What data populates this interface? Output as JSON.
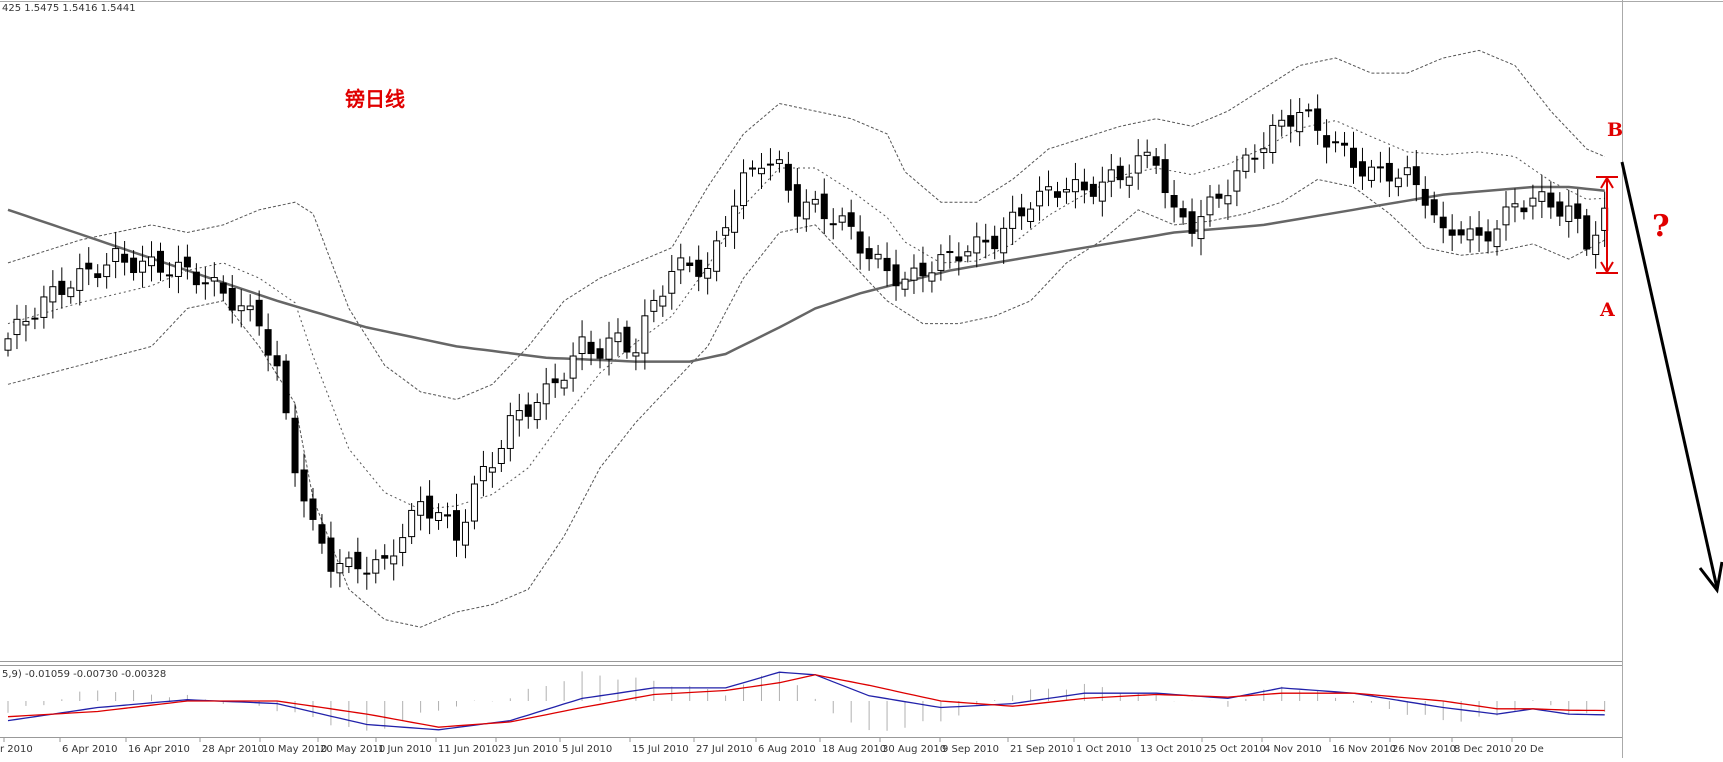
{
  "header": {
    "ohlc_readout": "425 1.5475 1.5416 1.5441"
  },
  "macd_header": {
    "readout": "5,9) -0.01059 -0.00730 -0.00328"
  },
  "annotations": {
    "title": "镑日线",
    "label_b": "B",
    "label_a": "A",
    "question": "?"
  },
  "colors": {
    "candle": "#000000",
    "bollinger": "#555555",
    "ma": "#666666",
    "macd_line": "#2222aa",
    "signal_line": "#dd0000",
    "histogram": "#b0b0b0",
    "annotation": "#e00000",
    "arrow": "#000000"
  },
  "chart_data": {
    "type": "candlestick",
    "xlabel": "",
    "ylabel": "",
    "x_ticks": [
      "r 2010",
      "6 Apr 2010",
      "16 Apr 2010",
      "28 Apr 2010",
      "10 May 2010",
      "20 May 2010",
      "1 Jun 2010",
      "11 Jun 2010",
      "23 Jun 2010",
      "5 Jul 2010",
      "15 Jul 2010",
      "27 Jul 2010",
      "6 Aug 2010",
      "18 Aug 2010",
      "30 Aug 2010",
      "9 Sep 2010",
      "21 Sep 2010",
      "1 Oct 2010",
      "13 Oct 2010",
      "25 Oct 2010",
      "4 Nov 2010",
      "16 Nov 2010",
      "26 Nov 2010",
      "8 Dec 2010",
      "20 De"
    ],
    "grid": false,
    "price_path": [
      [
        0,
        1.512
      ],
      [
        4,
        1.52
      ],
      [
        8,
        1.528
      ],
      [
        12,
        1.535
      ],
      [
        16,
        1.532
      ],
      [
        20,
        1.528
      ],
      [
        24,
        1.523
      ],
      [
        28,
        1.518
      ],
      [
        30,
        1.505
      ],
      [
        32,
        1.48
      ],
      [
        34,
        1.462
      ],
      [
        36,
        1.452
      ],
      [
        38,
        1.45
      ],
      [
        42,
        1.452
      ],
      [
        44,
        1.462
      ],
      [
        46,
        1.47
      ],
      [
        48,
        1.468
      ],
      [
        50,
        1.46
      ],
      [
        52,
        1.472
      ],
      [
        54,
        1.478
      ],
      [
        56,
        1.488
      ],
      [
        60,
        1.498
      ],
      [
        62,
        1.505
      ],
      [
        64,
        1.512
      ],
      [
        66,
        1.51
      ],
      [
        68,
        1.512
      ],
      [
        70,
        1.508
      ],
      [
        72,
        1.52
      ],
      [
        74,
        1.528
      ],
      [
        76,
        1.532
      ],
      [
        78,
        1.53
      ],
      [
        80,
        1.545
      ],
      [
        82,
        1.555
      ],
      [
        84,
        1.56
      ],
      [
        86,
        1.556
      ],
      [
        88,
        1.545
      ],
      [
        90,
        1.545
      ],
      [
        94,
        1.541
      ],
      [
        96,
        1.535
      ],
      [
        98,
        1.532
      ],
      [
        100,
        1.528
      ],
      [
        102,
        1.53
      ],
      [
        104,
        1.531
      ],
      [
        106,
        1.533
      ],
      [
        108,
        1.535
      ],
      [
        110,
        1.538
      ],
      [
        112,
        1.544
      ],
      [
        114,
        1.55
      ],
      [
        116,
        1.552
      ],
      [
        118,
        1.553
      ],
      [
        120,
        1.55
      ],
      [
        124,
        1.553
      ],
      [
        126,
        1.558
      ],
      [
        128,
        1.56
      ],
      [
        130,
        1.546
      ],
      [
        132,
        1.544
      ],
      [
        134,
        1.548
      ],
      [
        136,
        1.552
      ],
      [
        138,
        1.557
      ],
      [
        140,
        1.562
      ],
      [
        142,
        1.567
      ],
      [
        144,
        1.572
      ],
      [
        146,
        1.568
      ],
      [
        148,
        1.565
      ],
      [
        150,
        1.56
      ],
      [
        152,
        1.556
      ],
      [
        154,
        1.555
      ],
      [
        156,
        1.553
      ],
      [
        158,
        1.548
      ],
      [
        160,
        1.538
      ],
      [
        162,
        1.542
      ],
      [
        164,
        1.539
      ],
      [
        166,
        1.544
      ],
      [
        168,
        1.548
      ],
      [
        170,
        1.549
      ],
      [
        172,
        1.546
      ],
      [
        174,
        1.544
      ],
      [
        176,
        1.536
      ],
      [
        178,
        1.5441
      ]
    ],
    "ma_path": [
      [
        0,
        1.546
      ],
      [
        10,
        1.538
      ],
      [
        20,
        1.53
      ],
      [
        30,
        1.522
      ],
      [
        40,
        1.515
      ],
      [
        50,
        1.51
      ],
      [
        60,
        1.507
      ],
      [
        70,
        1.506
      ],
      [
        76,
        1.506
      ],
      [
        80,
        1.508
      ],
      [
        86,
        1.515
      ],
      [
        90,
        1.52
      ],
      [
        95,
        1.524
      ],
      [
        100,
        1.527
      ],
      [
        105,
        1.53
      ],
      [
        110,
        1.532
      ],
      [
        115,
        1.534
      ],
      [
        120,
        1.536
      ],
      [
        125,
        1.538
      ],
      [
        130,
        1.54
      ],
      [
        135,
        1.541
      ],
      [
        140,
        1.542
      ],
      [
        145,
        1.544
      ],
      [
        150,
        1.546
      ],
      [
        155,
        1.548
      ],
      [
        160,
        1.55
      ],
      [
        165,
        1.551
      ],
      [
        170,
        1.552
      ],
      [
        174,
        1.552
      ],
      [
        178,
        1.551
      ]
    ],
    "bb_upper_path": [
      [
        0,
        1.532
      ],
      [
        8,
        1.538
      ],
      [
        16,
        1.542
      ],
      [
        20,
        1.54
      ],
      [
        24,
        1.542
      ],
      [
        28,
        1.546
      ],
      [
        32,
        1.548
      ],
      [
        34,
        1.545
      ],
      [
        38,
        1.52
      ],
      [
        42,
        1.505
      ],
      [
        46,
        1.498
      ],
      [
        50,
        1.496
      ],
      [
        54,
        1.5
      ],
      [
        58,
        1.51
      ],
      [
        62,
        1.522
      ],
      [
        66,
        1.528
      ],
      [
        70,
        1.532
      ],
      [
        74,
        1.536
      ],
      [
        78,
        1.552
      ],
      [
        82,
        1.566
      ],
      [
        86,
        1.574
      ],
      [
        90,
        1.572
      ],
      [
        94,
        1.57
      ],
      [
        98,
        1.566
      ],
      [
        100,
        1.556
      ],
      [
        104,
        1.548
      ],
      [
        108,
        1.548
      ],
      [
        112,
        1.554
      ],
      [
        116,
        1.562
      ],
      [
        120,
        1.565
      ],
      [
        124,
        1.568
      ],
      [
        128,
        1.57
      ],
      [
        132,
        1.568
      ],
      [
        136,
        1.572
      ],
      [
        140,
        1.578
      ],
      [
        144,
        1.584
      ],
      [
        148,
        1.586
      ],
      [
        152,
        1.582
      ],
      [
        156,
        1.582
      ],
      [
        160,
        1.586
      ],
      [
        164,
        1.588
      ],
      [
        168,
        1.584
      ],
      [
        172,
        1.572
      ],
      [
        176,
        1.562
      ],
      [
        178,
        1.56
      ]
    ],
    "bb_lower_path": [
      [
        0,
        1.5
      ],
      [
        8,
        1.505
      ],
      [
        16,
        1.51
      ],
      [
        20,
        1.52
      ],
      [
        24,
        1.522
      ],
      [
        28,
        1.51
      ],
      [
        32,
        1.495
      ],
      [
        34,
        1.47
      ],
      [
        38,
        1.446
      ],
      [
        42,
        1.438
      ],
      [
        46,
        1.436
      ],
      [
        50,
        1.44
      ],
      [
        54,
        1.442
      ],
      [
        58,
        1.446
      ],
      [
        62,
        1.46
      ],
      [
        66,
        1.478
      ],
      [
        70,
        1.49
      ],
      [
        74,
        1.5
      ],
      [
        78,
        1.51
      ],
      [
        82,
        1.528
      ],
      [
        86,
        1.54
      ],
      [
        90,
        1.542
      ],
      [
        94,
        1.532
      ],
      [
        98,
        1.522
      ],
      [
        102,
        1.516
      ],
      [
        106,
        1.516
      ],
      [
        110,
        1.518
      ],
      [
        114,
        1.522
      ],
      [
        118,
        1.532
      ],
      [
        122,
        1.538
      ],
      [
        126,
        1.546
      ],
      [
        130,
        1.542
      ],
      [
        134,
        1.543
      ],
      [
        138,
        1.545
      ],
      [
        142,
        1.548
      ],
      [
        146,
        1.554
      ],
      [
        150,
        1.552
      ],
      [
        154,
        1.545
      ],
      [
        158,
        1.536
      ],
      [
        162,
        1.534
      ],
      [
        166,
        1.535
      ],
      [
        170,
        1.537
      ],
      [
        174,
        1.533
      ],
      [
        178,
        1.538
      ]
    ],
    "macd_path": [
      [
        0,
        -0.015
      ],
      [
        10,
        -0.005
      ],
      [
        20,
        0.001
      ],
      [
        30,
        -0.002
      ],
      [
        40,
        -0.018
      ],
      [
        48,
        -0.022
      ],
      [
        56,
        -0.015
      ],
      [
        64,
        0.002
      ],
      [
        72,
        0.01
      ],
      [
        80,
        0.01
      ],
      [
        86,
        0.022
      ],
      [
        90,
        0.02
      ],
      [
        96,
        0.004
      ],
      [
        104,
        -0.005
      ],
      [
        112,
        -0.002
      ],
      [
        120,
        0.006
      ],
      [
        128,
        0.006
      ],
      [
        136,
        0.002
      ],
      [
        142,
        0.01
      ],
      [
        150,
        0.006
      ],
      [
        160,
        -0.005
      ],
      [
        166,
        -0.01
      ],
      [
        170,
        -0.006
      ],
      [
        174,
        -0.01
      ],
      [
        178,
        -0.01059
      ]
    ],
    "signal_path": [
      [
        0,
        -0.012
      ],
      [
        10,
        -0.008
      ],
      [
        20,
        0.0
      ],
      [
        30,
        0.0
      ],
      [
        40,
        -0.01
      ],
      [
        48,
        -0.02
      ],
      [
        56,
        -0.016
      ],
      [
        64,
        -0.005
      ],
      [
        72,
        0.005
      ],
      [
        80,
        0.008
      ],
      [
        86,
        0.014
      ],
      [
        90,
        0.02
      ],
      [
        96,
        0.012
      ],
      [
        104,
        0.0
      ],
      [
        112,
        -0.004
      ],
      [
        120,
        0.002
      ],
      [
        128,
        0.005
      ],
      [
        136,
        0.003
      ],
      [
        142,
        0.006
      ],
      [
        150,
        0.006
      ],
      [
        160,
        0.0
      ],
      [
        166,
        -0.006
      ],
      [
        170,
        -0.006
      ],
      [
        174,
        -0.007
      ],
      [
        178,
        -0.0073
      ]
    ]
  }
}
